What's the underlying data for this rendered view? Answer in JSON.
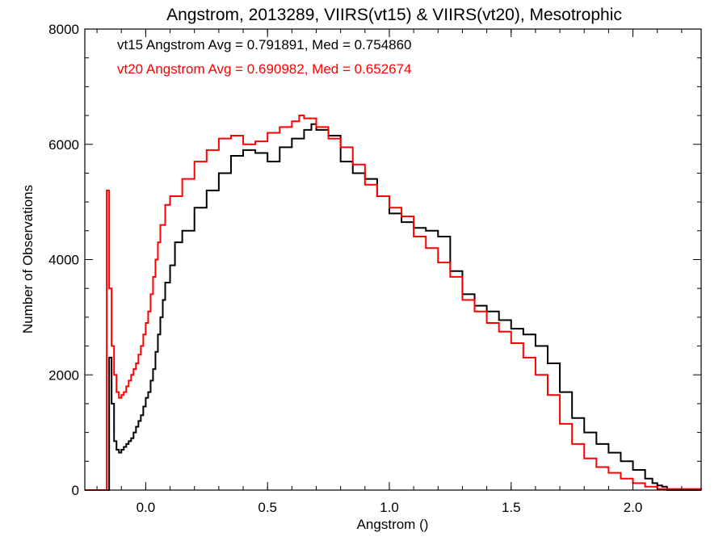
{
  "chart_data": {
    "type": "line",
    "title": "Angstrom, 2013289, VIIRS(vt15) & VIIRS(vt20), Mesotrophic",
    "xlabel": "Angstrom ()",
    "ylabel": "Number of Observations",
    "xlim": [
      -0.25,
      2.28
    ],
    "ylim": [
      0,
      8000
    ],
    "x_ticks": [
      0.0,
      0.5,
      1.0,
      1.5,
      2.0
    ],
    "x_tick_labels": [
      "0.0",
      "0.5",
      "1.0",
      "1.5",
      "2.0"
    ],
    "y_ticks": [
      0,
      2000,
      4000,
      6000,
      8000
    ],
    "y_tick_labels": [
      "0",
      "2000",
      "4000",
      "6000",
      "8000"
    ],
    "grid": false,
    "step": true,
    "annotations": [
      {
        "text": "vt15 Angstrom Avg = 0.791891, Med = 0.754860",
        "color": "#000000"
      },
      {
        "text": "vt20 Angstrom Avg = 0.690982, Med = 0.652674",
        "color": "#ff0000"
      }
    ],
    "series": [
      {
        "color": "#000000",
        "x": [
          -0.25,
          -0.16,
          -0.15,
          -0.14,
          -0.13,
          -0.12,
          -0.11,
          -0.1,
          -0.09,
          -0.08,
          -0.07,
          -0.06,
          -0.05,
          -0.04,
          -0.03,
          -0.02,
          -0.01,
          0.0,
          0.01,
          0.02,
          0.03,
          0.04,
          0.05,
          0.06,
          0.07,
          0.08,
          0.1,
          0.12,
          0.15,
          0.2,
          0.25,
          0.3,
          0.35,
          0.4,
          0.45,
          0.5,
          0.55,
          0.6,
          0.65,
          0.68,
          0.7,
          0.75,
          0.8,
          0.85,
          0.9,
          0.95,
          1.0,
          1.05,
          1.1,
          1.15,
          1.2,
          1.25,
          1.3,
          1.35,
          1.4,
          1.45,
          1.5,
          1.55,
          1.6,
          1.65,
          1.7,
          1.75,
          1.8,
          1.85,
          1.9,
          1.95,
          2.0,
          2.05,
          2.08,
          2.1,
          2.12,
          2.14,
          2.28
        ],
        "values": [
          0,
          0,
          2300,
          1500,
          850,
          700,
          650,
          700,
          750,
          800,
          850,
          900,
          1000,
          1100,
          1200,
          1300,
          1450,
          1600,
          1700,
          1900,
          2100,
          2400,
          2700,
          3000,
          3300,
          3600,
          3900,
          4300,
          4500,
          4900,
          5200,
          5500,
          5800,
          5900,
          5850,
          5700,
          5950,
          6100,
          6250,
          6350,
          6250,
          6150,
          5700,
          5500,
          5400,
          5100,
          4800,
          4650,
          4550,
          4500,
          4400,
          3800,
          3400,
          3200,
          3100,
          2950,
          2800,
          2700,
          2500,
          2200,
          1700,
          1250,
          1000,
          800,
          650,
          500,
          350,
          200,
          120,
          80,
          60,
          0,
          0
        ]
      },
      {
        "color": "#ff0000",
        "x": [
          -0.25,
          -0.16,
          -0.15,
          -0.14,
          -0.13,
          -0.12,
          -0.11,
          -0.1,
          -0.09,
          -0.08,
          -0.07,
          -0.06,
          -0.05,
          -0.04,
          -0.03,
          -0.02,
          -0.01,
          0.0,
          0.01,
          0.02,
          0.03,
          0.04,
          0.05,
          0.06,
          0.08,
          0.1,
          0.15,
          0.2,
          0.25,
          0.3,
          0.35,
          0.4,
          0.45,
          0.5,
          0.55,
          0.6,
          0.63,
          0.65,
          0.7,
          0.75,
          0.8,
          0.85,
          0.9,
          0.95,
          1.0,
          1.05,
          1.1,
          1.15,
          1.2,
          1.25,
          1.3,
          1.35,
          1.4,
          1.45,
          1.5,
          1.55,
          1.6,
          1.65,
          1.7,
          1.75,
          1.8,
          1.85,
          1.9,
          1.95,
          2.0,
          2.05,
          2.1,
          2.28
        ],
        "values": [
          0,
          5200,
          3500,
          2500,
          2000,
          1700,
          1600,
          1650,
          1700,
          1800,
          1900,
          2000,
          2100,
          2200,
          2350,
          2500,
          2700,
          2900,
          3100,
          3400,
          3700,
          4000,
          4300,
          4600,
          4950,
          5100,
          5400,
          5700,
          5900,
          6100,
          6150,
          6000,
          6050,
          6200,
          6300,
          6400,
          6500,
          6450,
          6300,
          6100,
          5950,
          5650,
          5300,
          5100,
          4900,
          4750,
          4400,
          4200,
          3950,
          3700,
          3300,
          3100,
          2900,
          2750,
          2550,
          2300,
          2000,
          1650,
          1150,
          800,
          550,
          400,
          300,
          200,
          120,
          60,
          20,
          0
        ]
      }
    ]
  }
}
